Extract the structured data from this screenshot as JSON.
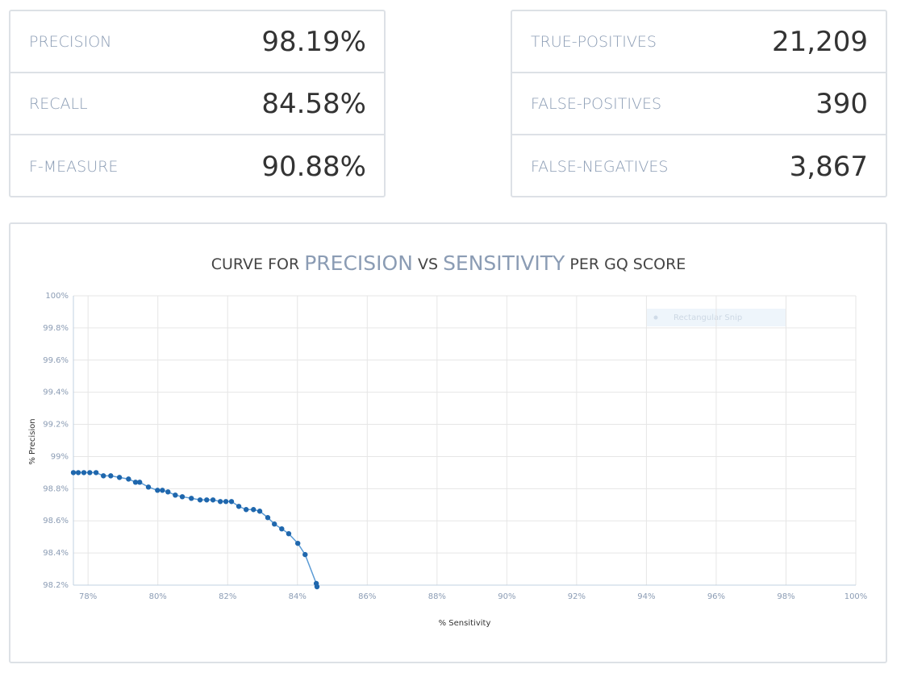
{
  "metrics_left": [
    {
      "label": "PRECISION",
      "value": "98.19%"
    },
    {
      "label": "RECALL",
      "value": "84.58%"
    },
    {
      "label": "F-MEASURE",
      "value": "90.88%"
    }
  ],
  "metrics_right": [
    {
      "label": "TRUE-POSITIVES",
      "value": "21,209"
    },
    {
      "label": "FALSE-POSITIVES",
      "value": "390"
    },
    {
      "label": "FALSE-NEGATIVES",
      "value": "3,867"
    }
  ],
  "chart_data": {
    "type": "line",
    "title_parts": [
      "CURVE FOR",
      "PRECISION",
      "VS",
      "SENSITIVITY",
      "PER GQ SCORE"
    ],
    "x_label": "% Sensitivity",
    "y_label": "% Precision",
    "overlay_text": "Rectangular Snip",
    "x": [
      77.58,
      77.72,
      77.88,
      78.05,
      78.23,
      78.44,
      78.65,
      78.9,
      79.16,
      79.36,
      79.48,
      79.73,
      79.99,
      80.13,
      80.29,
      80.5,
      80.7,
      80.96,
      81.21,
      81.4,
      81.58,
      81.79,
      81.95,
      82.11,
      82.32,
      82.53,
      82.74,
      82.92,
      83.15,
      83.34,
      83.55,
      83.75,
      84.01,
      84.22,
      84.54,
      84.56
    ],
    "series": [
      {
        "line_color": "#5b9bd5",
        "color": "#1f67ad",
        "values": [
          98.9,
          98.9,
          98.9,
          98.9,
          98.9,
          98.88,
          98.88,
          98.87,
          98.86,
          98.84,
          98.84,
          98.81,
          98.79,
          98.79,
          98.78,
          98.76,
          98.75,
          98.74,
          98.73,
          98.73,
          98.73,
          98.72,
          98.72,
          98.72,
          98.69,
          98.67,
          98.67,
          98.66,
          98.62,
          98.58,
          98.55,
          98.52,
          98.46,
          98.39,
          98.21,
          98.19
        ]
      }
    ],
    "xlim": [
      77.58,
      100
    ],
    "ylim": [
      98.2,
      100
    ],
    "xticks": [
      {
        "value": 78,
        "label": "78%"
      },
      {
        "value": 80,
        "label": "80%"
      },
      {
        "value": 82,
        "label": "82%"
      },
      {
        "value": 84,
        "label": "84%"
      },
      {
        "value": 86,
        "label": "86%"
      },
      {
        "value": 88,
        "label": "88%"
      },
      {
        "value": 90,
        "label": "90%"
      },
      {
        "value": 92,
        "label": "92%"
      },
      {
        "value": 94,
        "label": "94%"
      },
      {
        "value": 96,
        "label": "96%"
      },
      {
        "value": 98,
        "label": "98%"
      },
      {
        "value": 100,
        "label": "100%"
      }
    ],
    "yticks": [
      {
        "value": 98.2,
        "label": "98.2%"
      },
      {
        "value": 98.4,
        "label": "98.4%"
      },
      {
        "value": 98.6,
        "label": "98.6%"
      },
      {
        "value": 98.8,
        "label": "98.8%"
      },
      {
        "value": 99,
        "label": "99%"
      },
      {
        "value": 99.2,
        "label": "99.2%"
      },
      {
        "value": 99.4,
        "label": "99.4%"
      },
      {
        "value": 99.6,
        "label": "99.6%"
      },
      {
        "value": 99.8,
        "label": "99.8%"
      },
      {
        "value": 100,
        "label": "100%"
      }
    ],
    "grid": true
  }
}
